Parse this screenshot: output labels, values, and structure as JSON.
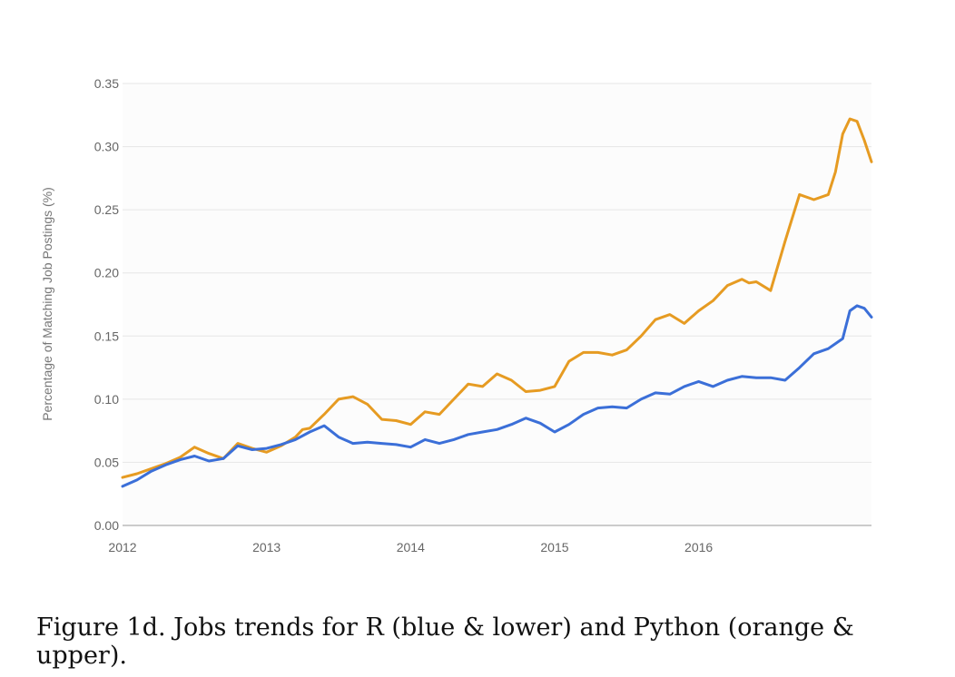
{
  "caption": "Figure 1d. Jobs trends for R (blue & lower) and Python (orange & upper).",
  "chart_data": {
    "type": "line",
    "ylabel": "Percentage of Matching Job Postings (%)",
    "xlabel": "",
    "ylim": [
      0,
      0.35
    ],
    "xlim": [
      2012,
      2017.2
    ],
    "yticks": [
      "0.00",
      "0.05",
      "0.10",
      "0.15",
      "0.20",
      "0.25",
      "0.30",
      "0.35"
    ],
    "xticks": [
      "2012",
      "2013",
      "2014",
      "2015",
      "2016"
    ],
    "grid": true,
    "legend": "none",
    "series": [
      {
        "color": "#e69b22",
        "x": [
          2012.0,
          2012.1,
          2012.2,
          2012.3,
          2012.4,
          2012.5,
          2012.6,
          2012.7,
          2012.8,
          2012.9,
          2013.0,
          2013.1,
          2013.2,
          2013.25,
          2013.3,
          2013.4,
          2013.5,
          2013.6,
          2013.7,
          2013.8,
          2013.9,
          2014.0,
          2014.1,
          2014.2,
          2014.3,
          2014.4,
          2014.5,
          2014.6,
          2014.7,
          2014.8,
          2014.9,
          2015.0,
          2015.05,
          2015.1,
          2015.2,
          2015.3,
          2015.4,
          2015.5,
          2015.6,
          2015.7,
          2015.8,
          2015.9,
          2016.0,
          2016.1,
          2016.2,
          2016.3,
          2016.35,
          2016.4,
          2016.5,
          2016.6,
          2016.7,
          2016.8,
          2016.9,
          2016.95,
          2017.0,
          2017.05,
          2017.1,
          2017.15,
          2017.2
        ],
        "y": [
          0.038,
          0.041,
          0.045,
          0.049,
          0.054,
          0.062,
          0.057,
          0.053,
          0.065,
          0.061,
          0.058,
          0.063,
          0.07,
          0.076,
          0.077,
          0.088,
          0.1,
          0.102,
          0.096,
          0.084,
          0.083,
          0.08,
          0.09,
          0.088,
          0.1,
          0.112,
          0.11,
          0.12,
          0.115,
          0.106,
          0.107,
          0.11,
          0.12,
          0.13,
          0.137,
          0.137,
          0.135,
          0.139,
          0.15,
          0.163,
          0.167,
          0.16,
          0.17,
          0.178,
          0.19,
          0.195,
          0.192,
          0.193,
          0.186,
          0.225,
          0.262,
          0.258,
          0.262,
          0.28,
          0.31,
          0.322,
          0.32,
          0.305,
          0.288
        ]
      },
      {
        "color": "#3b6fd8",
        "x": [
          2012.0,
          2012.1,
          2012.2,
          2012.3,
          2012.4,
          2012.5,
          2012.6,
          2012.7,
          2012.8,
          2012.9,
          2013.0,
          2013.1,
          2013.2,
          2013.3,
          2013.4,
          2013.5,
          2013.6,
          2013.7,
          2013.8,
          2013.9,
          2014.0,
          2014.1,
          2014.2,
          2014.3,
          2014.4,
          2014.5,
          2014.6,
          2014.7,
          2014.8,
          2014.9,
          2015.0,
          2015.1,
          2015.2,
          2015.3,
          2015.4,
          2015.5,
          2015.6,
          2015.7,
          2015.8,
          2015.9,
          2016.0,
          2016.1,
          2016.2,
          2016.3,
          2016.4,
          2016.5,
          2016.6,
          2016.7,
          2016.8,
          2016.9,
          2017.0,
          2017.05,
          2017.1,
          2017.15,
          2017.2
        ],
        "y": [
          0.031,
          0.036,
          0.043,
          0.048,
          0.052,
          0.055,
          0.051,
          0.053,
          0.063,
          0.06,
          0.061,
          0.064,
          0.068,
          0.074,
          0.079,
          0.07,
          0.065,
          0.066,
          0.065,
          0.064,
          0.062,
          0.068,
          0.065,
          0.068,
          0.072,
          0.074,
          0.076,
          0.08,
          0.085,
          0.081,
          0.074,
          0.08,
          0.088,
          0.093,
          0.094,
          0.093,
          0.1,
          0.105,
          0.104,
          0.11,
          0.114,
          0.11,
          0.115,
          0.118,
          0.117,
          0.117,
          0.115,
          0.125,
          0.136,
          0.14,
          0.148,
          0.17,
          0.174,
          0.172,
          0.165
        ]
      }
    ]
  }
}
